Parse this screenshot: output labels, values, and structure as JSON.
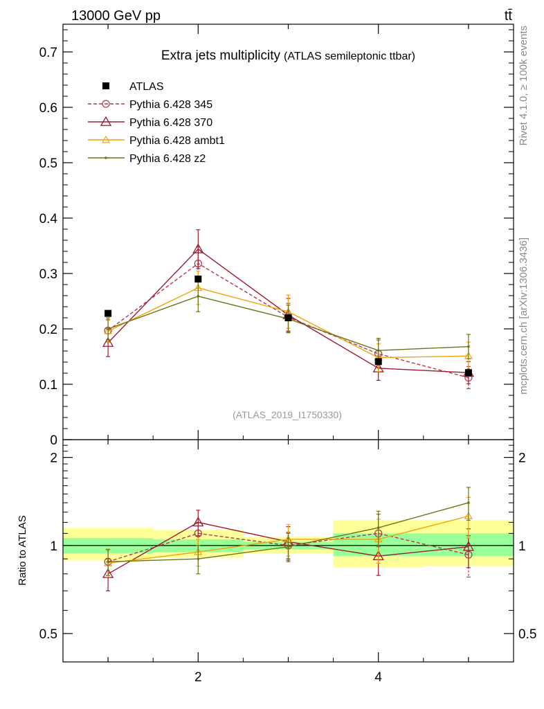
{
  "chart_data": [
    {
      "type": "line",
      "panel": "main",
      "header_left": "13000 GeV pp",
      "header_right": "tt̄",
      "title": "Extra jets multiplicity",
      "subtitle": "(ATLAS semileptonic ttbar)",
      "watermark": "(ATLAS_2019_I1750330)",
      "side_label_top": "Rivet 4.1.0, ≥ 100k events",
      "side_label_bottom": "mcplots.cern.ch [arXiv:1306.3436]",
      "xlim": [
        0.5,
        5.5
      ],
      "ylim": [
        0,
        0.75
      ],
      "x_ticks": [
        2,
        4
      ],
      "y_ticks": [
        0,
        0.1,
        0.2,
        0.3,
        0.4,
        0.5,
        0.6,
        0.7
      ],
      "y_tick_labels": [
        "0",
        "0.1",
        "0.2",
        "0.3",
        "0.4",
        "0.5",
        "0.6",
        "0.7"
      ],
      "legend_position": "top-left",
      "series": [
        {
          "name": "ATLAS",
          "style": "data",
          "color": "#000000",
          "x": [
            1,
            2,
            3,
            4,
            5
          ],
          "values": [
            0.228,
            0.29,
            0.22,
            0.141,
            0.121
          ],
          "errors": [
            0.004,
            0.006,
            0.005,
            0.004,
            0.004
          ]
        },
        {
          "name": "Pythia 6.428 345",
          "style": "dashed-circle",
          "color": "#b0384f",
          "x": [
            1,
            2,
            3,
            4,
            5
          ],
          "values": [
            0.197,
            0.318,
            0.221,
            0.155,
            0.112
          ],
          "errors": [
            0.02,
            0.03,
            0.025,
            0.025,
            0.02
          ]
        },
        {
          "name": "Pythia 6.428 370",
          "style": "solid-triangle",
          "color": "#9b1b30",
          "x": [
            1,
            2,
            3,
            4,
            5
          ],
          "values": [
            0.175,
            0.344,
            0.225,
            0.129,
            0.121
          ],
          "errors": [
            0.025,
            0.035,
            0.03,
            0.022,
            0.02
          ]
        },
        {
          "name": "Pythia 6.428 ambt1",
          "style": "solid-small-triangle",
          "color": "#f0a30a",
          "x": [
            1,
            2,
            3,
            4,
            5
          ],
          "values": [
            0.196,
            0.274,
            0.231,
            0.148,
            0.151
          ],
          "errors": [
            0.02,
            0.03,
            0.03,
            0.025,
            0.025
          ]
        },
        {
          "name": "Pythia 6.428 z2",
          "style": "solid-dot",
          "color": "#6b7412",
          "x": [
            1,
            2,
            3,
            4,
            5
          ],
          "values": [
            0.2,
            0.259,
            0.218,
            0.161,
            0.168
          ],
          "errors": [
            0.02,
            0.028,
            0.025,
            0.022,
            0.022
          ]
        }
      ]
    },
    {
      "type": "line",
      "panel": "ratio",
      "ylabel": "Ratio to ATLAS",
      "xlim": [
        0.5,
        5.5
      ],
      "ylim_log": [
        0.4,
        2.3
      ],
      "x_ticks": [
        2,
        4
      ],
      "x_tick_labels": [
        "2",
        "4"
      ],
      "y_ticks": [
        0.5,
        1,
        2
      ],
      "y_tick_labels": [
        "0.5",
        "1",
        "2"
      ],
      "bands": [
        {
          "x0": 0.5,
          "x1": 1.5,
          "green": [
            0.94,
            1.06
          ],
          "yellow": [
            0.89,
            1.15
          ]
        },
        {
          "x0": 1.5,
          "x1": 2.5,
          "green": [
            0.95,
            1.05
          ],
          "yellow": [
            0.91,
            1.13
          ]
        },
        {
          "x0": 2.5,
          "x1": 3.5,
          "green": [
            0.97,
            1.03
          ],
          "yellow": [
            0.94,
            1.07
          ]
        },
        {
          "x0": 3.5,
          "x1": 4.5,
          "green": [
            0.92,
            1.1
          ],
          "yellow": [
            0.84,
            1.22
          ]
        },
        {
          "x0": 4.5,
          "x1": 5.5,
          "green": [
            0.92,
            1.1
          ],
          "yellow": [
            0.85,
            1.22
          ]
        }
      ],
      "series": [
        {
          "name": "Pythia 6.428 345",
          "style": "dashed-circle",
          "color": "#b0384f",
          "x": [
            1,
            2,
            3,
            4,
            5
          ],
          "values": [
            0.88,
            1.1,
            1.0,
            1.1,
            0.93
          ],
          "errors": [
            0.09,
            0.1,
            0.11,
            0.18,
            0.15
          ]
        },
        {
          "name": "Pythia 6.428 370",
          "style": "solid-triangle",
          "color": "#9b1b30",
          "x": [
            1,
            2,
            3,
            4,
            5
          ],
          "values": [
            0.8,
            1.2,
            1.03,
            0.92,
            0.99
          ],
          "errors": [
            0.1,
            0.12,
            0.13,
            0.13,
            0.15
          ]
        },
        {
          "name": "Pythia 6.428 ambt1",
          "style": "solid-small-triangle",
          "color": "#f0a30a",
          "x": [
            1,
            2,
            3,
            4,
            5
          ],
          "values": [
            0.87,
            0.95,
            1.05,
            1.05,
            1.26
          ],
          "errors": [
            0.09,
            0.1,
            0.13,
            0.18,
            0.2
          ]
        },
        {
          "name": "Pythia 6.428 z2",
          "style": "solid-dot",
          "color": "#6b7412",
          "x": [
            1,
            2,
            3,
            4,
            5
          ],
          "values": [
            0.88,
            0.9,
            0.99,
            1.15,
            1.4
          ],
          "errors": [
            0.09,
            0.1,
            0.11,
            0.16,
            0.18
          ]
        }
      ]
    }
  ]
}
